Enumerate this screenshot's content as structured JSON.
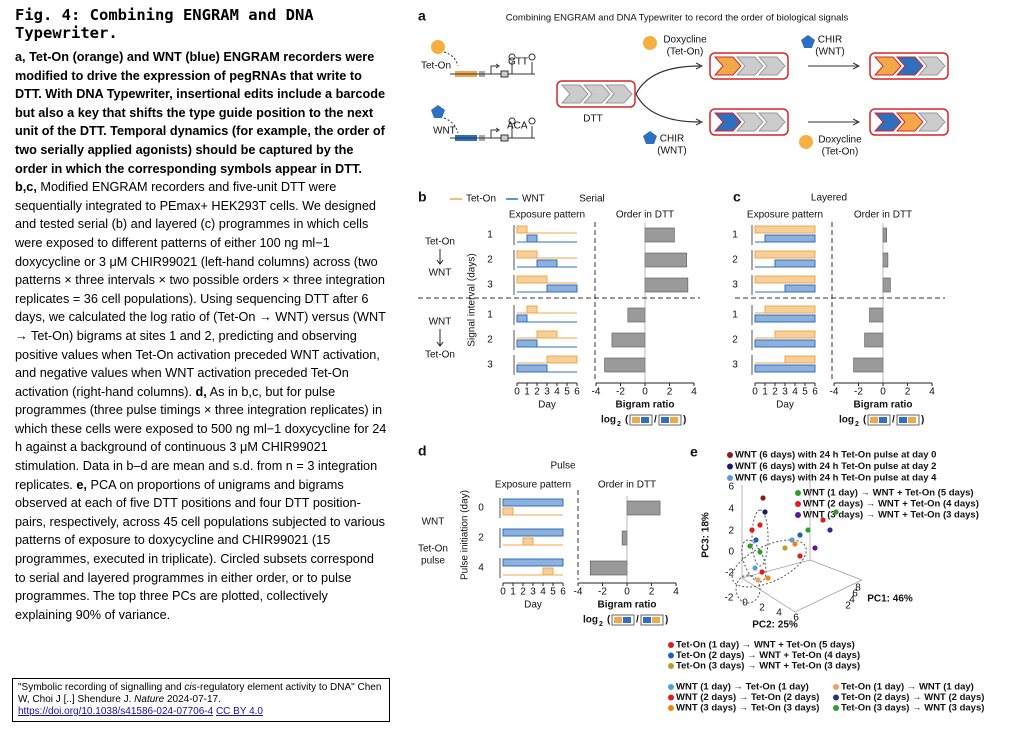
{
  "caption": {
    "title": "Fig. 4: Combining ENGRAM and DNA Typewriter.",
    "runs": [
      {
        "text": "a, Tet-On (orange) and WNT (blue) ENGRAM recorders were modified to drive the expression of pegRNAs that write to DTT. With DNA Typewriter, insertional edits include a barcode but also a key that shifts the type guide position to the next unit of the DTT. Temporal dynamics (for example, the order of two serially applied agonists) should be captured by the order in which the corresponding symbols appear in DTT. b,c,",
        "bold": true
      },
      {
        "text": " Modified ENGRAM recorders and five-unit DTT were sequentially integrated to PEmax+ HEK293T cells. We designed and tested serial (b) and layered (c) programmes in which cells were exposed to different patterns of either 100 ng ml−1 doxycycline or 3 μM CHIR99021 (left-hand columns) across (two patterns × three intervals × two possible orders × three integration replicates = 36 cell populations). Using sequencing DTT after 6 days, we calculated the log ratio of (Tet-On → WNT) versus (WNT → Tet-On) bigrams at sites 1 and 2, predicting and observing positive values when Tet-On activation preceded WNT activation, and negative values when WNT activation preceded Tet-On activation (right-hand columns). ",
        "bold": false
      },
      {
        "text": "d,",
        "bold": true
      },
      {
        "text": " As in b,c, but for pulse programmes (three pulse timings × three integration replicates) in which these cells were exposed to 500 ng ml−1 doxycycline for 24 h against a background of continuous 3 μM CHIR99021 stimulation. Data in b–d are mean and s.d. from n = 3 integration replicates. ",
        "bold": false
      },
      {
        "text": "e,",
        "bold": true
      },
      {
        "text": " PCA on proportions of unigrams and bigrams observed at each of five DTT positions and four DTT position-pairs, respectively, across 45 cell populations subjected to various patterns of exposure to doxycycline and CHIR99021 (15 programmes, executed in triplicate). Circled subsets correspond to serial and layered programmes in either order, or to pulse programmes. The top three PCs are plotted, collectively explaining 90% of variance.",
        "bold": false
      }
    ]
  },
  "citation": {
    "runs": [
      {
        "text": "\"Symbolic recording of signalling and ",
        "italic": false
      },
      {
        "text": "cis",
        "italic": true
      },
      {
        "text": "-regulatory element activity to DNA\" Chen W, Choi J [..] Shendure J. ",
        "italic": false
      },
      {
        "text": "Nature",
        "italic": true
      },
      {
        "text": " 2024-07-17.",
        "italic": false
      }
    ],
    "link": "https://doi.org/10.1038/s41586-024-07706-4",
    "license": "CC BY 4.0"
  },
  "figure": {
    "panel_a": {
      "label": "a",
      "title": "Combining ENGRAM and DNA Typewriter to record the order of biological signals",
      "tet_on": "Tet-On",
      "gtt": "GTT",
      "wnt": "WNT",
      "aca": "ACA",
      "dtt": "DTT",
      "dox_top": [
        "Doxycline",
        "(Tet-On)"
      ],
      "chir_top": [
        "CHIR",
        "(WNT)"
      ],
      "chir_bottom": [
        "CHIR",
        "(WNT)"
      ],
      "dox_bottom": [
        "Doxycline",
        "(Tet-On)"
      ]
    },
    "panel_b": {
      "label": "b",
      "legend": [
        {
          "name": "Tet-On",
          "color": "#f0a848"
        },
        {
          "name": "WNT",
          "color": "#2f6fbf"
        }
      ],
      "title": "Serial",
      "left_header": "Exposure pattern",
      "right_header": "Order in DTT",
      "y_label": "Signal interval (days)",
      "left_labels": [
        "Tet-On",
        "WNT",
        "WNT",
        "Tet-On"
      ],
      "groups": [
        {
          "rows": [
            {
              "label": 1,
              "tet_on": [
                0,
                1
              ],
              "wnt": [
                1,
                2
              ],
              "value": 2.4
            },
            {
              "label": 2,
              "tet_on": [
                0,
                2
              ],
              "wnt": [
                2,
                4
              ],
              "value": 3.4
            },
            {
              "label": 3,
              "tet_on": [
                0,
                3
              ],
              "wnt": [
                3,
                6
              ],
              "value": 3.5
            }
          ]
        },
        {
          "rows": [
            {
              "label": 1,
              "tet_on": [
                1,
                2
              ],
              "wnt": [
                0,
                1
              ],
              "value": -1.4
            },
            {
              "label": 2,
              "tet_on": [
                2,
                4
              ],
              "wnt": [
                0,
                2
              ],
              "value": -2.7
            },
            {
              "label": 3,
              "tet_on": [
                3,
                6
              ],
              "wnt": [
                0,
                3
              ],
              "value": -3.3
            }
          ]
        }
      ],
      "day_lim": [
        0,
        6
      ],
      "day_ticks": [
        0,
        1,
        2,
        3,
        4,
        5,
        6
      ],
      "day_label": "Day",
      "bar_xlim": [
        -4,
        4
      ],
      "bar_xticks": [
        -4,
        -2,
        0,
        2,
        4
      ],
      "bar_label": "Bigram ratio",
      "log_label": "log",
      "log_base": 2,
      "ratio_open": "(",
      "ratio_sep": "/",
      "ratio_close": ")"
    },
    "panel_c": {
      "label": "c",
      "title": "Layered",
      "left_header": "Exposure pattern",
      "right_header": "Order in DTT",
      "groups": [
        {
          "rows": [
            {
              "label": 1,
              "tet_on": [
                0,
                6
              ],
              "wnt": [
                1,
                6
              ],
              "value": 0.3
            },
            {
              "label": 2,
              "tet_on": [
                0,
                6
              ],
              "wnt": [
                2,
                6
              ],
              "value": 0.4
            },
            {
              "label": 3,
              "tet_on": [
                0,
                6
              ],
              "wnt": [
                3,
                6
              ],
              "value": 0.6
            }
          ]
        },
        {
          "rows": [
            {
              "label": 1,
              "tet_on": [
                1,
                6
              ],
              "wnt": [
                0,
                6
              ],
              "value": -1.1
            },
            {
              "label": 2,
              "tet_on": [
                2,
                6
              ],
              "wnt": [
                0,
                6
              ],
              "value": -1.5
            },
            {
              "label": 3,
              "tet_on": [
                3,
                6
              ],
              "wnt": [
                0,
                6
              ],
              "value": -2.4
            }
          ]
        }
      ],
      "day_lim": [
        0,
        6
      ],
      "day_ticks": [
        0,
        1,
        2,
        3,
        4,
        5,
        6
      ],
      "day_label": "Day",
      "bar_xlim": [
        -4,
        4
      ],
      "bar_xticks": [
        -4,
        -2,
        0,
        2,
        4
      ],
      "bar_label": "Bigram ratio",
      "log_label": "log",
      "log_base": 2,
      "ratio_open": "(",
      "ratio_sep": "/",
      "ratio_close": ")"
    },
    "panel_d": {
      "label": "d",
      "title": "Pulse",
      "left_header": "Exposure pattern",
      "right_header": "Order in DTT",
      "y_label": "Pulse initiation (day)",
      "left_labels": [
        "WNT",
        "Tet-On",
        "pulse"
      ],
      "groups": [
        {
          "rows": [
            {
              "label": 0,
              "tet_on": [
                0,
                1
              ],
              "wnt": [
                0,
                6
              ],
              "value": 2.7
            },
            {
              "label": 2,
              "tet_on": [
                2,
                3
              ],
              "wnt": [
                0,
                6
              ],
              "value": -0.4
            },
            {
              "label": 4,
              "tet_on": [
                4,
                5
              ],
              "wnt": [
                0,
                6
              ],
              "value": -3.0
            }
          ]
        }
      ],
      "day_lim": [
        0,
        6
      ],
      "day_ticks": [
        0,
        1,
        2,
        3,
        4,
        5,
        6
      ],
      "day_label": "Day",
      "bar_xlim": [
        -4,
        4
      ],
      "bar_xticks": [
        -4,
        -2,
        0,
        2,
        4
      ],
      "bar_label": "Bigram ratio",
      "log_label": "log",
      "log_base": 2,
      "ratio_open": "(",
      "ratio_sep": "/",
      "ratio_close": ")"
    },
    "panel_e": {
      "label": "e",
      "legend_top": [
        {
          "name": "WNT (6 days) with 24 h Tet-On pulse at day 0",
          "color": "#8b1a1a"
        },
        {
          "name": "WNT (6 days) with 24 h Tet-On pulse at day 2",
          "color": "#1a1a6e"
        },
        {
          "name": "WNT (6 days) with 24 h Tet-On pulse at day 4",
          "color": "#5b9bd5"
        }
      ],
      "legend_mid": [
        {
          "name": "WNT (1 day) → WNT + Tet-On (5 days)",
          "color": "#2ca02c"
        },
        {
          "name": "WNT (2 days) → WNT + Tet-On (4 days)",
          "color": "#e41a1c"
        },
        {
          "name": "WNT (3 days) → WNT + Tet-On (3 days)",
          "color": "#5a189a"
        }
      ],
      "pc3_label": "PC3: 18%",
      "pc2_label": "PC2: 25%",
      "pc1_label": "PC1: 46%",
      "pc3_ticks": [
        6,
        4,
        2,
        0,
        -2
      ],
      "pc2_ticks": [
        -2,
        0,
        2,
        4,
        6
      ],
      "pc1_ticks": [
        2,
        4,
        6,
        8
      ],
      "legend_bottom_a": [
        {
          "name": "Tet-On (1 day) → WNT + Tet-On (5 days)",
          "color": "#e41a1c"
        },
        {
          "name": "Tet-On (2 days) → WNT + Tet-On (4 days)",
          "color": "#1f5fbf"
        },
        {
          "name": "Tet-On (3 days) → WNT + Tet-On (3 days)",
          "color": "#b8a02a"
        }
      ],
      "legend_bottom_b": [
        {
          "name": "WNT (1 day) → Tet-On (1 day)",
          "color": "#4fa3d9"
        },
        {
          "name": "WNT (2 days) → Tet-On (2 days)",
          "color": "#e41a1c"
        },
        {
          "name": "WNT (3 days) → Tet-On (3 days)",
          "color": "#ff7f0e"
        },
        {
          "name": "Tet-On (1 day) → WNT (1 day)",
          "color": "#f0a060"
        },
        {
          "name": "Tet-On (2 days) → WNT (2 days)",
          "color": "#2c2c8c"
        },
        {
          "name": "Tet-On (3 days) → WNT (3 days)",
          "color": "#2ca02c"
        }
      ]
    }
  }
}
